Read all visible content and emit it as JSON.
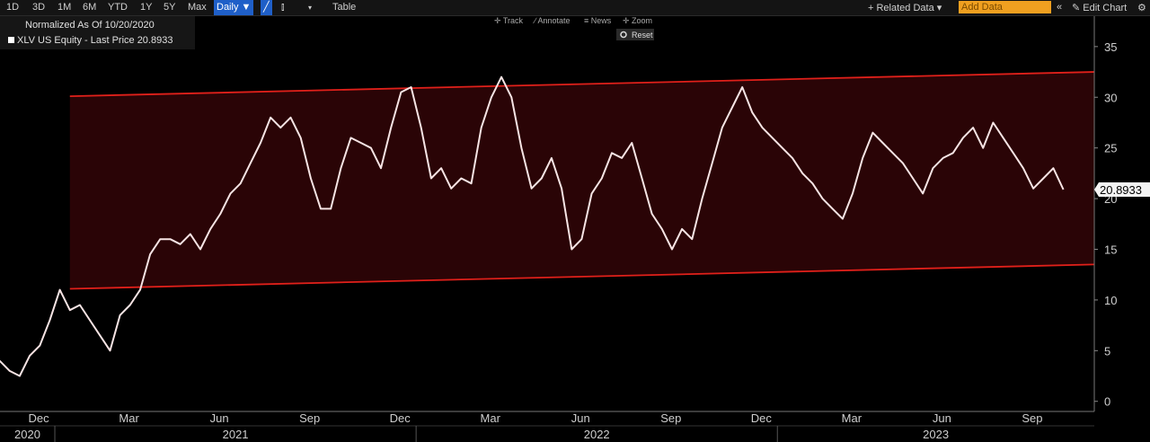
{
  "toolbar": {
    "ranges": [
      "1D",
      "3D",
      "1M",
      "6M",
      "YTD",
      "1Y",
      "5Y",
      "Max"
    ],
    "frequency": "Daily ▼",
    "table": "Table",
    "related_data": "+ Related Data ▾",
    "add_data": "Add Data",
    "edit_chart": "Edit Chart"
  },
  "chart_tools": {
    "track": "Track",
    "annotate": "Annotate",
    "news": "News",
    "zoom": "Zoom",
    "reset": "Reset"
  },
  "chart_data": {
    "type": "line",
    "subtitle": "Normalized As Of 10/20/2020",
    "categories": [
      null,
      null,
      null,
      "Dec",
      null,
      null,
      null,
      null,
      null,
      null,
      null,
      null,
      "Mar",
      null,
      null,
      null,
      null,
      null,
      null,
      null,
      null,
      "Jun",
      null,
      null,
      null,
      null,
      null,
      null,
      null,
      null,
      "Sep",
      null,
      null,
      null,
      null,
      null,
      null,
      null,
      null,
      "Dec",
      null,
      null,
      null,
      null,
      null,
      null,
      null,
      null,
      "Mar",
      null,
      null,
      null,
      null,
      null,
      null,
      null,
      null,
      "Jun",
      null,
      null,
      null,
      null,
      null,
      null,
      null,
      null,
      "Sep",
      null,
      null,
      null,
      null,
      null,
      null,
      null,
      null,
      "Dec",
      null,
      null,
      null,
      null,
      null,
      null,
      null,
      null,
      "Mar",
      null,
      null,
      null,
      null,
      null,
      null,
      null,
      null,
      "Jun",
      null,
      null,
      null,
      null,
      null,
      null,
      null,
      null,
      "Sep",
      null,
      null,
      null,
      null
    ],
    "years": [
      "2020",
      "2021",
      "2022",
      "2023"
    ],
    "series": [
      {
        "name": "XLV US Equity - Last Price",
        "color": "#f6e4e4",
        "values": [
          4,
          3,
          2.5,
          4.5,
          5.5,
          8,
          11,
          9,
          9.5,
          8,
          6.5,
          5,
          8.5,
          9.5,
          11,
          14.5,
          16,
          16,
          15.5,
          16.5,
          15,
          17,
          18.5,
          20.5,
          21.5,
          23.5,
          25.5,
          28,
          27,
          28,
          26,
          22,
          19,
          19,
          23,
          26,
          25.5,
          25,
          23,
          27,
          30.5,
          31,
          27,
          22,
          23,
          21,
          22,
          21.5,
          27,
          30,
          32,
          30,
          25,
          21,
          22,
          24,
          21,
          15,
          16,
          20.5,
          22,
          24.5,
          24,
          25.5,
          22,
          18.5,
          17,
          15,
          17,
          16,
          20,
          23.5,
          27,
          29,
          31,
          28.5,
          27,
          26,
          25,
          24,
          22.5,
          21.5,
          20,
          19,
          18,
          20.5,
          24,
          26.5,
          25.5,
          24.5,
          23.5,
          22,
          20.5,
          23,
          24,
          24.5,
          26,
          27,
          25,
          27.5,
          26,
          24.5,
          23,
          21,
          22,
          23,
          20.8933
        ]
      }
    ],
    "channel": {
      "upper": [
        30.1,
        32.5
      ],
      "lower": [
        11.1,
        13.5
      ],
      "color": "#e0201a",
      "fill": "#2a0406"
    },
    "ylim": [
      -1,
      38
    ],
    "yticks": [
      0,
      5,
      10,
      15,
      20,
      25,
      30,
      35
    ],
    "grid": false
  }
}
